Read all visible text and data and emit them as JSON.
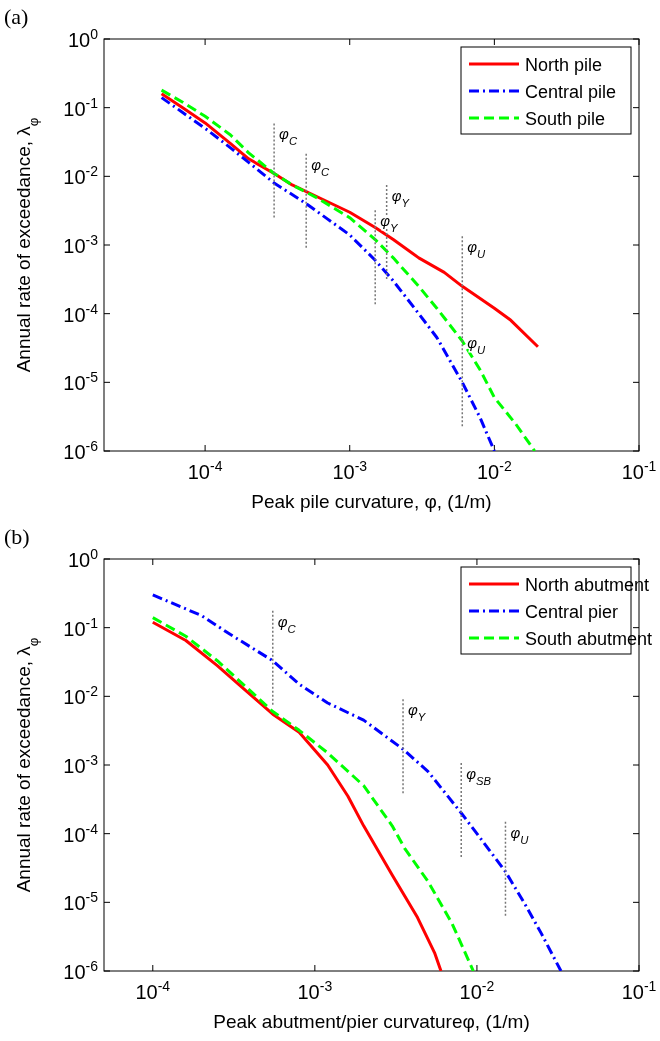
{
  "chart_data": [
    {
      "type": "line",
      "title": "(a)",
      "xlabel": "Peak pile curvature, φ, (1/m)",
      "ylabel": "Annual rate of exceedance,  λ$_{φ}$",
      "log": "xy",
      "legend": "top right",
      "xlim": [
        2e-05,
        0.1
      ],
      "ylim": [
        1e-06,
        1
      ],
      "xticks": [
        {
          "value": 0.0001,
          "label": "10$^{-4}$"
        },
        {
          "value": 0.001,
          "label": "10$^{-3}$"
        },
        {
          "value": 0.01,
          "label": "10$^{-2}$"
        },
        {
          "value": 0.1,
          "label": "10$^{-1}$"
        }
      ],
      "yticks": [
        {
          "value": 1e-06,
          "label": "10$^{-6}$"
        },
        {
          "value": 1e-05,
          "label": "10$^{-5}$"
        },
        {
          "value": 0.0001,
          "label": "10$^{-4}$"
        },
        {
          "value": 0.001,
          "label": "10$^{-3}$"
        },
        {
          "value": 0.01,
          "label": "10$^{-2}$"
        },
        {
          "value": 0.1,
          "label": "10$^{-1}$"
        },
        {
          "value": 1,
          "label": "10$^{0}$"
        }
      ],
      "series": [
        {
          "name": "North pile",
          "color": "#ff0000",
          "line_style": "solid",
          "x": [
            5e-05,
            7e-05,
            0.0001,
            0.00015,
            0.0002,
            0.0003,
            0.0004,
            0.0006,
            0.001,
            0.0015,
            0.002,
            0.003,
            0.0045,
            0.006,
            0.01,
            0.013,
            0.02
          ],
          "values": [
            0.16,
            0.1,
            0.06,
            0.03,
            0.018,
            0.011,
            0.0075,
            0.005,
            0.003,
            0.0018,
            0.0012,
            0.00065,
            0.0004,
            0.00025,
            0.00012,
            8e-05,
            3.3e-05
          ]
        },
        {
          "name": "Central pile",
          "color": "#0000ff",
          "line_style": "dashdot",
          "x": [
            5e-05,
            7e-05,
            0.0001,
            0.00015,
            0.0002,
            0.0003,
            0.0005,
            0.0007,
            0.001,
            0.0015,
            0.002,
            0.003,
            0.004,
            0.006,
            0.008,
            0.01
          ],
          "values": [
            0.14,
            0.085,
            0.05,
            0.026,
            0.016,
            0.008,
            0.004,
            0.0024,
            0.0014,
            0.0006,
            0.0003,
            0.0001,
            4.5e-05,
            1e-05,
            3e-06,
            1e-06
          ]
        },
        {
          "name": "South pile",
          "color": "#00ff00",
          "line_style": "dashed",
          "x": [
            5e-05,
            7e-05,
            0.0001,
            0.00015,
            0.0002,
            0.0003,
            0.0004,
            0.0006,
            0.001,
            0.0015,
            0.002,
            0.003,
            0.004,
            0.006,
            0.008,
            0.01,
            0.014,
            0.019
          ],
          "values": [
            0.18,
            0.12,
            0.075,
            0.04,
            0.022,
            0.011,
            0.0075,
            0.0048,
            0.0025,
            0.0012,
            0.00065,
            0.00025,
            0.00012,
            4e-05,
            1.5e-05,
            6e-06,
            2.5e-06,
            1e-06
          ]
        }
      ],
      "annotations": [
        {
          "text": "φ$_{C}$",
          "x": 0.0003,
          "y": 0.011
        },
        {
          "text": "φ$_{C}$",
          "x": 0.0005,
          "y": 0.004
        },
        {
          "text": "φ$_{Y}$",
          "x": 0.0018,
          "y": 0.0014
        },
        {
          "text": "φ$_{Y}$",
          "x": 0.0015,
          "y": 0.0006
        },
        {
          "text": "φ$_{U}$",
          "x": 0.006,
          "y": 0.00025
        },
        {
          "text": "φ$_{U}$",
          "x": 0.006,
          "y": 1e-05
        }
      ]
    },
    {
      "type": "line",
      "title": "(b)",
      "xlabel": "Peak abutment/pier curvatureφ, (1/m)",
      "ylabel": "Annual rate of exceedance,  λ$_{φ}$",
      "log": "xy",
      "legend": "top right",
      "xlim": [
        5e-05,
        0.1
      ],
      "ylim": [
        1e-06,
        1
      ],
      "xticks": [
        {
          "value": 0.0001,
          "label": "10$^{-4}$"
        },
        {
          "value": 0.001,
          "label": "10$^{-3}$"
        },
        {
          "value": 0.01,
          "label": "10$^{-2}$"
        },
        {
          "value": 0.1,
          "label": "10$^{-1}$"
        }
      ],
      "yticks": [
        {
          "value": 1e-06,
          "label": "10$^{-6}$"
        },
        {
          "value": 1e-05,
          "label": "10$^{-5}$"
        },
        {
          "value": 0.0001,
          "label": "10$^{-4}$"
        },
        {
          "value": 0.001,
          "label": "10$^{-3}$"
        },
        {
          "value": 0.01,
          "label": "10$^{-2}$"
        },
        {
          "value": 0.1,
          "label": "10$^{-1}$"
        },
        {
          "value": 1,
          "label": "10$^{0}$"
        }
      ],
      "series": [
        {
          "name": "North abutment",
          "color": "#ff0000",
          "line_style": "solid",
          "x": [
            0.0001,
            0.00016,
            0.00025,
            0.00035,
            0.00055,
            0.0008,
            0.0012,
            0.0016,
            0.002,
            0.003,
            0.0043,
            0.0055,
            0.006
          ],
          "values": [
            0.12,
            0.065,
            0.028,
            0.014,
            0.0055,
            0.003,
            0.001,
            0.00035,
            0.00013,
            2.5e-05,
            6e-06,
            1.8e-06,
            1e-06
          ]
        },
        {
          "name": "Central pier",
          "color": "#0000ff",
          "line_style": "dashdot",
          "x": [
            0.0001,
            0.0002,
            0.0003,
            0.00055,
            0.0008,
            0.0012,
            0.002,
            0.0035,
            0.005,
            0.008,
            0.01,
            0.015,
            0.02,
            0.025,
            0.033
          ],
          "values": [
            0.3,
            0.15,
            0.08,
            0.033,
            0.015,
            0.008,
            0.0045,
            0.0017,
            0.0008,
            0.0002,
            0.0001,
            2.8e-05,
            9e-06,
            3.5e-06,
            1e-06
          ]
        },
        {
          "name": "South abutment",
          "color": "#00ff00",
          "line_style": "dashed",
          "x": [
            0.0001,
            0.00016,
            0.00025,
            0.00035,
            0.00055,
            0.0008,
            0.0012,
            0.002,
            0.003,
            0.0036,
            0.005,
            0.007,
            0.0095
          ],
          "values": [
            0.14,
            0.075,
            0.033,
            0.016,
            0.006,
            0.0032,
            0.0015,
            0.0005,
            0.00013,
            6e-05,
            2e-05,
            5e-06,
            1e-06
          ]
        }
      ],
      "annotations": [
        {
          "text": "φ$_{C}$",
          "x": 0.00055,
          "y": 0.033
        },
        {
          "text": "φ$_{Y}$",
          "x": 0.0035,
          "y": 0.0017
        },
        {
          "text": "φ$_{SB}$",
          "x": 0.008,
          "y": 0.0002
        },
        {
          "text": "φ$_{U}$",
          "x": 0.015,
          "y": 2.8e-05
        }
      ]
    }
  ]
}
